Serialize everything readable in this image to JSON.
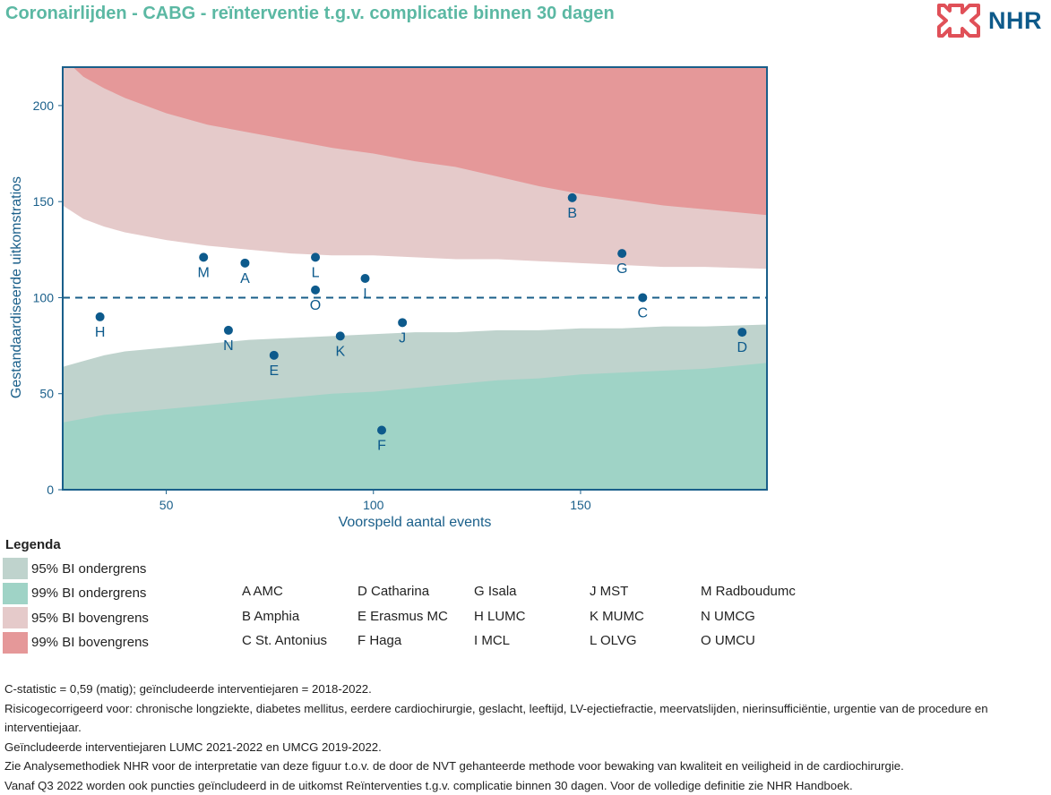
{
  "title": "Coronairlijden - CABG - reïnterventie t.g.v. complicatie binnen 30 dagen",
  "logo": {
    "text": "NHR",
    "icon": "nhr-heart-cross-icon"
  },
  "colors": {
    "title": "#5bb8a3",
    "axis": "#1a5f8a",
    "point": "#0d5a8c",
    "ci95_lower": "#bfd3cd",
    "ci99_lower": "#9fd3c6",
    "ci95_upper": "#e5caca",
    "ci99_upper": "#e59899"
  },
  "chart_data": {
    "type": "scatter",
    "xlabel": "Voorspeld aantal events",
    "ylabel": "Gestandaardiseerde uitkomstratios",
    "xlim": [
      25,
      195
    ],
    "ylim": [
      0,
      220
    ],
    "xticks": [
      50,
      100,
      150
    ],
    "yticks": [
      0,
      50,
      100,
      150,
      200
    ],
    "reference_line": 100,
    "points": [
      {
        "label": "A",
        "x": 69,
        "y": 118
      },
      {
        "label": "B",
        "x": 148,
        "y": 152
      },
      {
        "label": "C",
        "x": 165,
        "y": 100
      },
      {
        "label": "D",
        "x": 189,
        "y": 82
      },
      {
        "label": "E",
        "x": 76,
        "y": 70
      },
      {
        "label": "F",
        "x": 102,
        "y": 31
      },
      {
        "label": "G",
        "x": 160,
        "y": 123
      },
      {
        "label": "H",
        "x": 34,
        "y": 90
      },
      {
        "label": "I",
        "x": 98,
        "y": 110
      },
      {
        "label": "J",
        "x": 107,
        "y": 87
      },
      {
        "label": "K",
        "x": 92,
        "y": 80
      },
      {
        "label": "L",
        "x": 86,
        "y": 121
      },
      {
        "label": "M",
        "x": 59,
        "y": 121
      },
      {
        "label": "N",
        "x": 65,
        "y": 83
      },
      {
        "label": "O",
        "x": 86,
        "y": 104
      }
    ],
    "bands": {
      "x": [
        25,
        30,
        35,
        40,
        50,
        60,
        70,
        80,
        90,
        100,
        110,
        120,
        130,
        140,
        150,
        160,
        170,
        180,
        195
      ],
      "upper99": [
        225,
        215,
        209,
        204,
        196,
        190,
        186,
        182,
        178,
        175,
        171,
        168,
        163,
        158,
        154,
        151,
        148,
        146,
        143
      ],
      "upper95": [
        148,
        141,
        137,
        134,
        130,
        127,
        125,
        123,
        122,
        122,
        121,
        120,
        120,
        119,
        118,
        117,
        116,
        116,
        115
      ],
      "lower95": [
        64,
        67,
        70,
        72,
        74,
        76,
        78,
        79,
        80,
        81,
        82,
        82,
        83,
        83,
        84,
        84,
        85,
        85,
        86
      ],
      "lower99": [
        35,
        37,
        39,
        40,
        42,
        44,
        46,
        48,
        50,
        51,
        53,
        55,
        57,
        58,
        60,
        61,
        62,
        63,
        66
      ]
    }
  },
  "legend": {
    "title": "Legenda",
    "items": [
      {
        "label": "95% BI ondergrens",
        "color": "#bfd3cd"
      },
      {
        "label": "99% BI ondergrens",
        "color": "#9fd3c6"
      },
      {
        "label": "95% BI bovengrens",
        "color": "#e5caca"
      },
      {
        "label": "99% BI bovengrens",
        "color": "#e59899"
      }
    ],
    "hospitals": [
      "A AMC",
      "B Amphia",
      "C St. Antonius",
      "D Catharina",
      "E Erasmus MC",
      "F Haga",
      "G Isala",
      "H LUMC",
      "I MCL",
      "J MST",
      "K MUMC",
      "L OLVG",
      "M Radboudumc",
      "N UMCG",
      "O UMCU"
    ]
  },
  "notes": [
    "C-statistic =  0,59 (matig); geïncludeerde interventiejaren = 2018-2022.",
    "Risicogecorrigeerd voor: chronische longziekte, diabetes mellitus, eerdere cardiochirurgie, geslacht, leeftijd, LV-ejectiefractie, meervatslijden, nierinsufficiëntie, urgentie van de procedure en interventiejaar.",
    "Geïncludeerde interventiejaren LUMC 2021-2022 en UMCG 2019-2022.",
    "Zie Analysemethodiek NHR voor de interpretatie van deze figuur t.o.v. de door de NVT gehanteerde methode voor bewaking van kwaliteit en veiligheid in de cardiochirurgie.",
    "Vanaf Q3 2022 worden ook puncties geïncludeerd in de uitkomst Reïnterventies t.g.v. complicatie binnen 30 dagen. Voor de volledige definitie zie NHR Handboek."
  ]
}
